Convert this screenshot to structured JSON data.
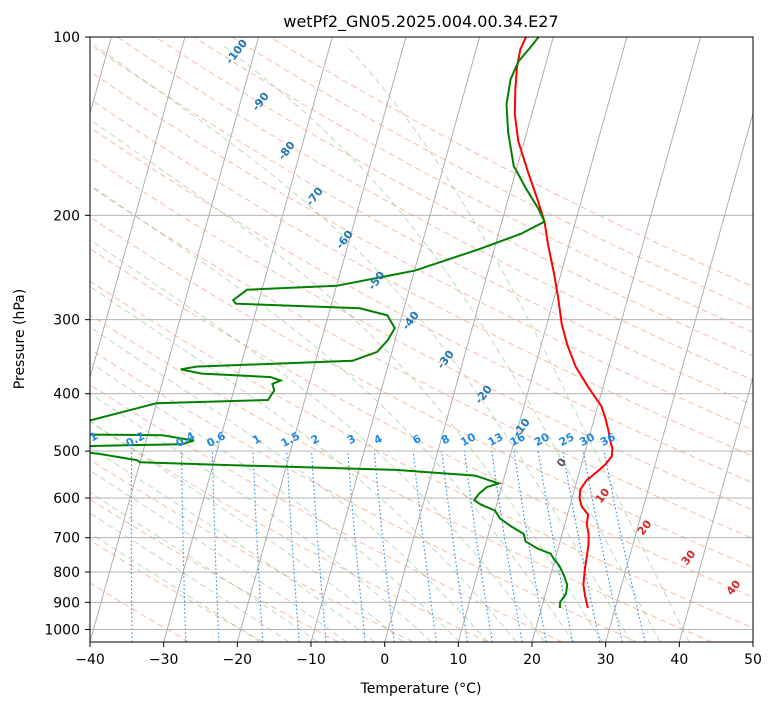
{
  "chart_data": {
    "type": "line",
    "title": "wetPf2_GN05.2025.004.00.34.E27",
    "xlabel": "Temperature (°C)",
    "ylabel": "Pressure (hPa)",
    "xlim": [
      -40,
      50
    ],
    "ylim": [
      1050,
      100
    ],
    "y_scale": "log",
    "grid": true,
    "x_ticks": [
      "−40",
      "−30",
      "−20",
      "−10",
      "0",
      "10",
      "20",
      "30",
      "40",
      "50"
    ],
    "x_tick_values": [
      -40,
      -30,
      -20,
      -10,
      0,
      10,
      20,
      30,
      40,
      50
    ],
    "y_ticks": [
      "100",
      "200",
      "300",
      "400",
      "500",
      "600",
      "700",
      "800",
      "900",
      "1000"
    ],
    "y_tick_values": [
      100,
      200,
      300,
      400,
      500,
      600,
      700,
      800,
      900,
      1000
    ],
    "series": [
      {
        "color": "#ff0000",
        "points": [
          [
            26.3,
            920
          ],
          [
            25.5,
            880
          ],
          [
            24.8,
            840
          ],
          [
            24.5,
            800
          ],
          [
            24.3,
            770
          ],
          [
            24.0,
            720
          ],
          [
            23.6,
            690
          ],
          [
            23.0,
            665
          ],
          [
            22.8,
            640
          ],
          [
            21.6,
            620
          ],
          [
            21.0,
            600
          ],
          [
            20.8,
            580
          ],
          [
            21.3,
            560
          ],
          [
            22.5,
            540
          ],
          [
            23.3,
            525
          ],
          [
            23.8,
            510
          ],
          [
            23.6,
            495
          ],
          [
            23.0,
            480
          ],
          [
            22.4,
            462
          ],
          [
            21.5,
            440
          ],
          [
            20.5,
            420
          ],
          [
            18.0,
            390
          ],
          [
            15.5,
            360
          ],
          [
            13.5,
            330
          ],
          [
            12.0,
            305
          ],
          [
            10.5,
            275
          ],
          [
            9.0,
            250
          ],
          [
            7.2,
            225
          ],
          [
            5.8,
            205
          ],
          [
            4.0,
            188
          ],
          [
            1.8,
            170
          ],
          [
            -0.8,
            150
          ],
          [
            -2.3,
            135
          ],
          [
            -3.2,
            122
          ],
          [
            -3.8,
            112
          ],
          [
            -4.0,
            105
          ],
          [
            -3.7,
            100
          ]
        ]
      },
      {
        "color": "#008000",
        "points": [
          [
            22.5,
            920
          ],
          [
            22.3,
            900
          ],
          [
            22.8,
            870
          ],
          [
            22.6,
            840
          ],
          [
            21.8,
            810
          ],
          [
            20.8,
            780
          ],
          [
            19.8,
            760
          ],
          [
            19.2,
            745
          ],
          [
            17.2,
            730
          ],
          [
            15.3,
            710
          ],
          [
            14.8,
            690
          ],
          [
            12.8,
            670
          ],
          [
            11.0,
            650
          ],
          [
            10.0,
            630
          ],
          [
            7.8,
            615
          ],
          [
            6.8,
            605
          ],
          [
            7.2,
            590
          ],
          [
            8.0,
            575
          ],
          [
            9.5,
            567
          ],
          [
            6.0,
            550
          ],
          [
            -5.0,
            538
          ],
          [
            -30.0,
            527
          ],
          [
            -40.0,
            522
          ],
          [
            -40.5,
            518
          ],
          [
            -46.0,
            505
          ],
          [
            -55.0,
            492
          ],
          [
            -35.0,
            487
          ],
          [
            -33.5,
            480
          ],
          [
            -38.0,
            470
          ],
          [
            -55.0,
            468
          ],
          [
            -40.0,
            415
          ],
          [
            -25.0,
            410
          ],
          [
            -24.5,
            395
          ],
          [
            -25.0,
            385
          ],
          [
            -24.0,
            380
          ],
          [
            -25.5,
            375
          ],
          [
            -35.0,
            370
          ],
          [
            -38.0,
            364
          ],
          [
            -36.0,
            360
          ],
          [
            -15.0,
            352
          ],
          [
            -12.0,
            340
          ],
          [
            -11.0,
            325
          ],
          [
            -10.5,
            310
          ],
          [
            -12.0,
            295
          ],
          [
            -16.0,
            287
          ],
          [
            -33.0,
            282
          ],
          [
            -33.5,
            278
          ],
          [
            -32.0,
            267
          ],
          [
            -20.0,
            263
          ],
          [
            -10.0,
            248
          ],
          [
            -2.0,
            228
          ],
          [
            3.0,
            215
          ],
          [
            5.8,
            205
          ],
          [
            4.5,
            195
          ],
          [
            2.0,
            180
          ],
          [
            -0.5,
            165
          ],
          [
            -2.5,
            145
          ],
          [
            -3.8,
            130
          ],
          [
            -4.2,
            118
          ],
          [
            -3.8,
            110
          ],
          [
            -2.5,
            103
          ],
          [
            -2.0,
            100
          ]
        ]
      }
    ],
    "annotations": {
      "dry_adiabats": [
        "-100",
        "-90",
        "-80",
        "-70",
        "-60",
        "-50",
        "-40",
        "-30",
        "-20",
        "-10",
        "0",
        "10",
        "20",
        "30",
        "40"
      ],
      "mixing_ratio": [
        "0.1",
        "0.2",
        "0.4",
        "0.6",
        "1",
        "1.5",
        "2",
        "3",
        "4",
        "6",
        "8",
        "10",
        "13",
        "16",
        "20",
        "25",
        "30",
        "36"
      ]
    },
    "colors": {
      "dry_adiabat": "#f4a582",
      "moist_adiabat": "#7fbf7f",
      "mixing_ratio": "#1e88e5",
      "isotherm": "#a9a9a9",
      "dry_label": "#1f77b4",
      "hot_label": "#d62728"
    }
  }
}
